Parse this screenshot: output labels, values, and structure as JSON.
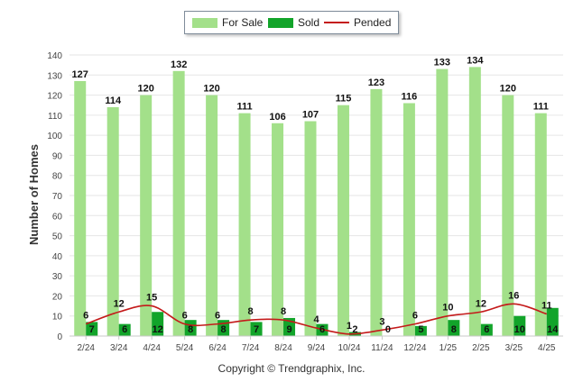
{
  "chart_data": {
    "type": "bar",
    "title": "",
    "xlabel": "",
    "ylabel": "Number of Homes",
    "ylim": [
      0,
      140
    ],
    "yticks": [
      0,
      10,
      20,
      30,
      40,
      50,
      60,
      70,
      80,
      90,
      100,
      110,
      120,
      130,
      140
    ],
    "grid": true,
    "legend_position": "top-center",
    "categories": [
      "2/24",
      "3/24",
      "4/24",
      "5/24",
      "6/24",
      "7/24",
      "8/24",
      "9/24",
      "10/24",
      "11/24",
      "12/24",
      "1/25",
      "2/25",
      "3/25",
      "4/25"
    ],
    "series": [
      {
        "name": "For Sale",
        "kind": "bar",
        "color": "#a3e08a",
        "values": [
          127,
          114,
          120,
          132,
          120,
          111,
          106,
          107,
          115,
          123,
          116,
          133,
          134,
          120,
          111
        ]
      },
      {
        "name": "Sold",
        "kind": "bar",
        "color": "#12a42a",
        "values": [
          7,
          6,
          12,
          8,
          8,
          7,
          9,
          6,
          2,
          0,
          5,
          8,
          6,
          10,
          14
        ]
      },
      {
        "name": "Pended",
        "kind": "line",
        "color": "#c41a1a",
        "values": [
          6,
          12,
          15,
          6,
          6,
          8,
          8,
          4,
          1,
          3,
          6,
          10,
          12,
          16,
          11
        ]
      }
    ]
  },
  "legend": {
    "for_sale": "For Sale",
    "sold": "Sold",
    "pended": "Pended"
  },
  "footer": {
    "copyright": "Copyright © Trendgraphix, Inc."
  }
}
